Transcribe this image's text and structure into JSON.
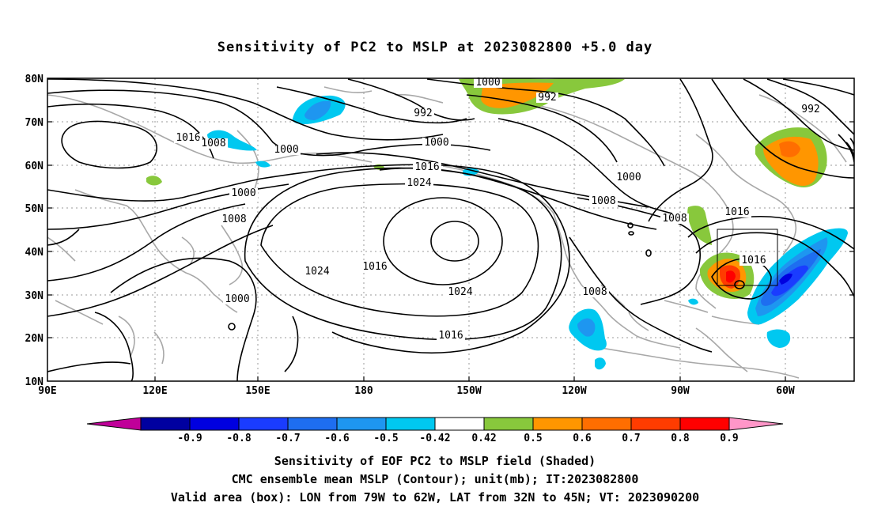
{
  "title": "Sensitivity of PC2 to MSLP at 2023082800 +5.0 day",
  "axes": {
    "lat_labels": [
      "80N",
      "70N",
      "60N",
      "50N",
      "40N",
      "30N",
      "20N",
      "10N"
    ],
    "lon_labels": [
      "90E",
      "120E",
      "150E",
      "180",
      "150W",
      "120W",
      "90W",
      "60W"
    ]
  },
  "contour_labels": [
    "1000",
    "992",
    "992",
    "992",
    "1016",
    "1008",
    "1000",
    "1000",
    "1000",
    "1016",
    "1024",
    "1008",
    "1000",
    "1008",
    "1016",
    "1008",
    "1000",
    "1024",
    "1016",
    "1024",
    "1016",
    "1008",
    "1016"
  ],
  "colorbar": {
    "labels": [
      "-0.9",
      "-0.8",
      "-0.7",
      "-0.6",
      "-0.5",
      "-0.42",
      "0.42",
      "0.5",
      "0.6",
      "0.7",
      "0.8",
      "0.9"
    ],
    "colors": [
      "#c00099",
      "#0000a0",
      "#0000e0",
      "#1a3cff",
      "#1e6ef0",
      "#1e96f0",
      "#00c8f0",
      "#ffffff",
      "#88c83c",
      "#ff9600",
      "#ff6e00",
      "#ff3c00",
      "#ff0000",
      "#ff96c8"
    ]
  },
  "captions": [
    "Sensitivity of EOF PC2 to MSLP field (Shaded)",
    "CMC ensemble mean MSLP (Contour); unit(mb); IT:2023082800",
    "Valid area (box): LON from 79W to 62W, LAT from 32N to 45N; VT: 2023090200"
  ]
}
